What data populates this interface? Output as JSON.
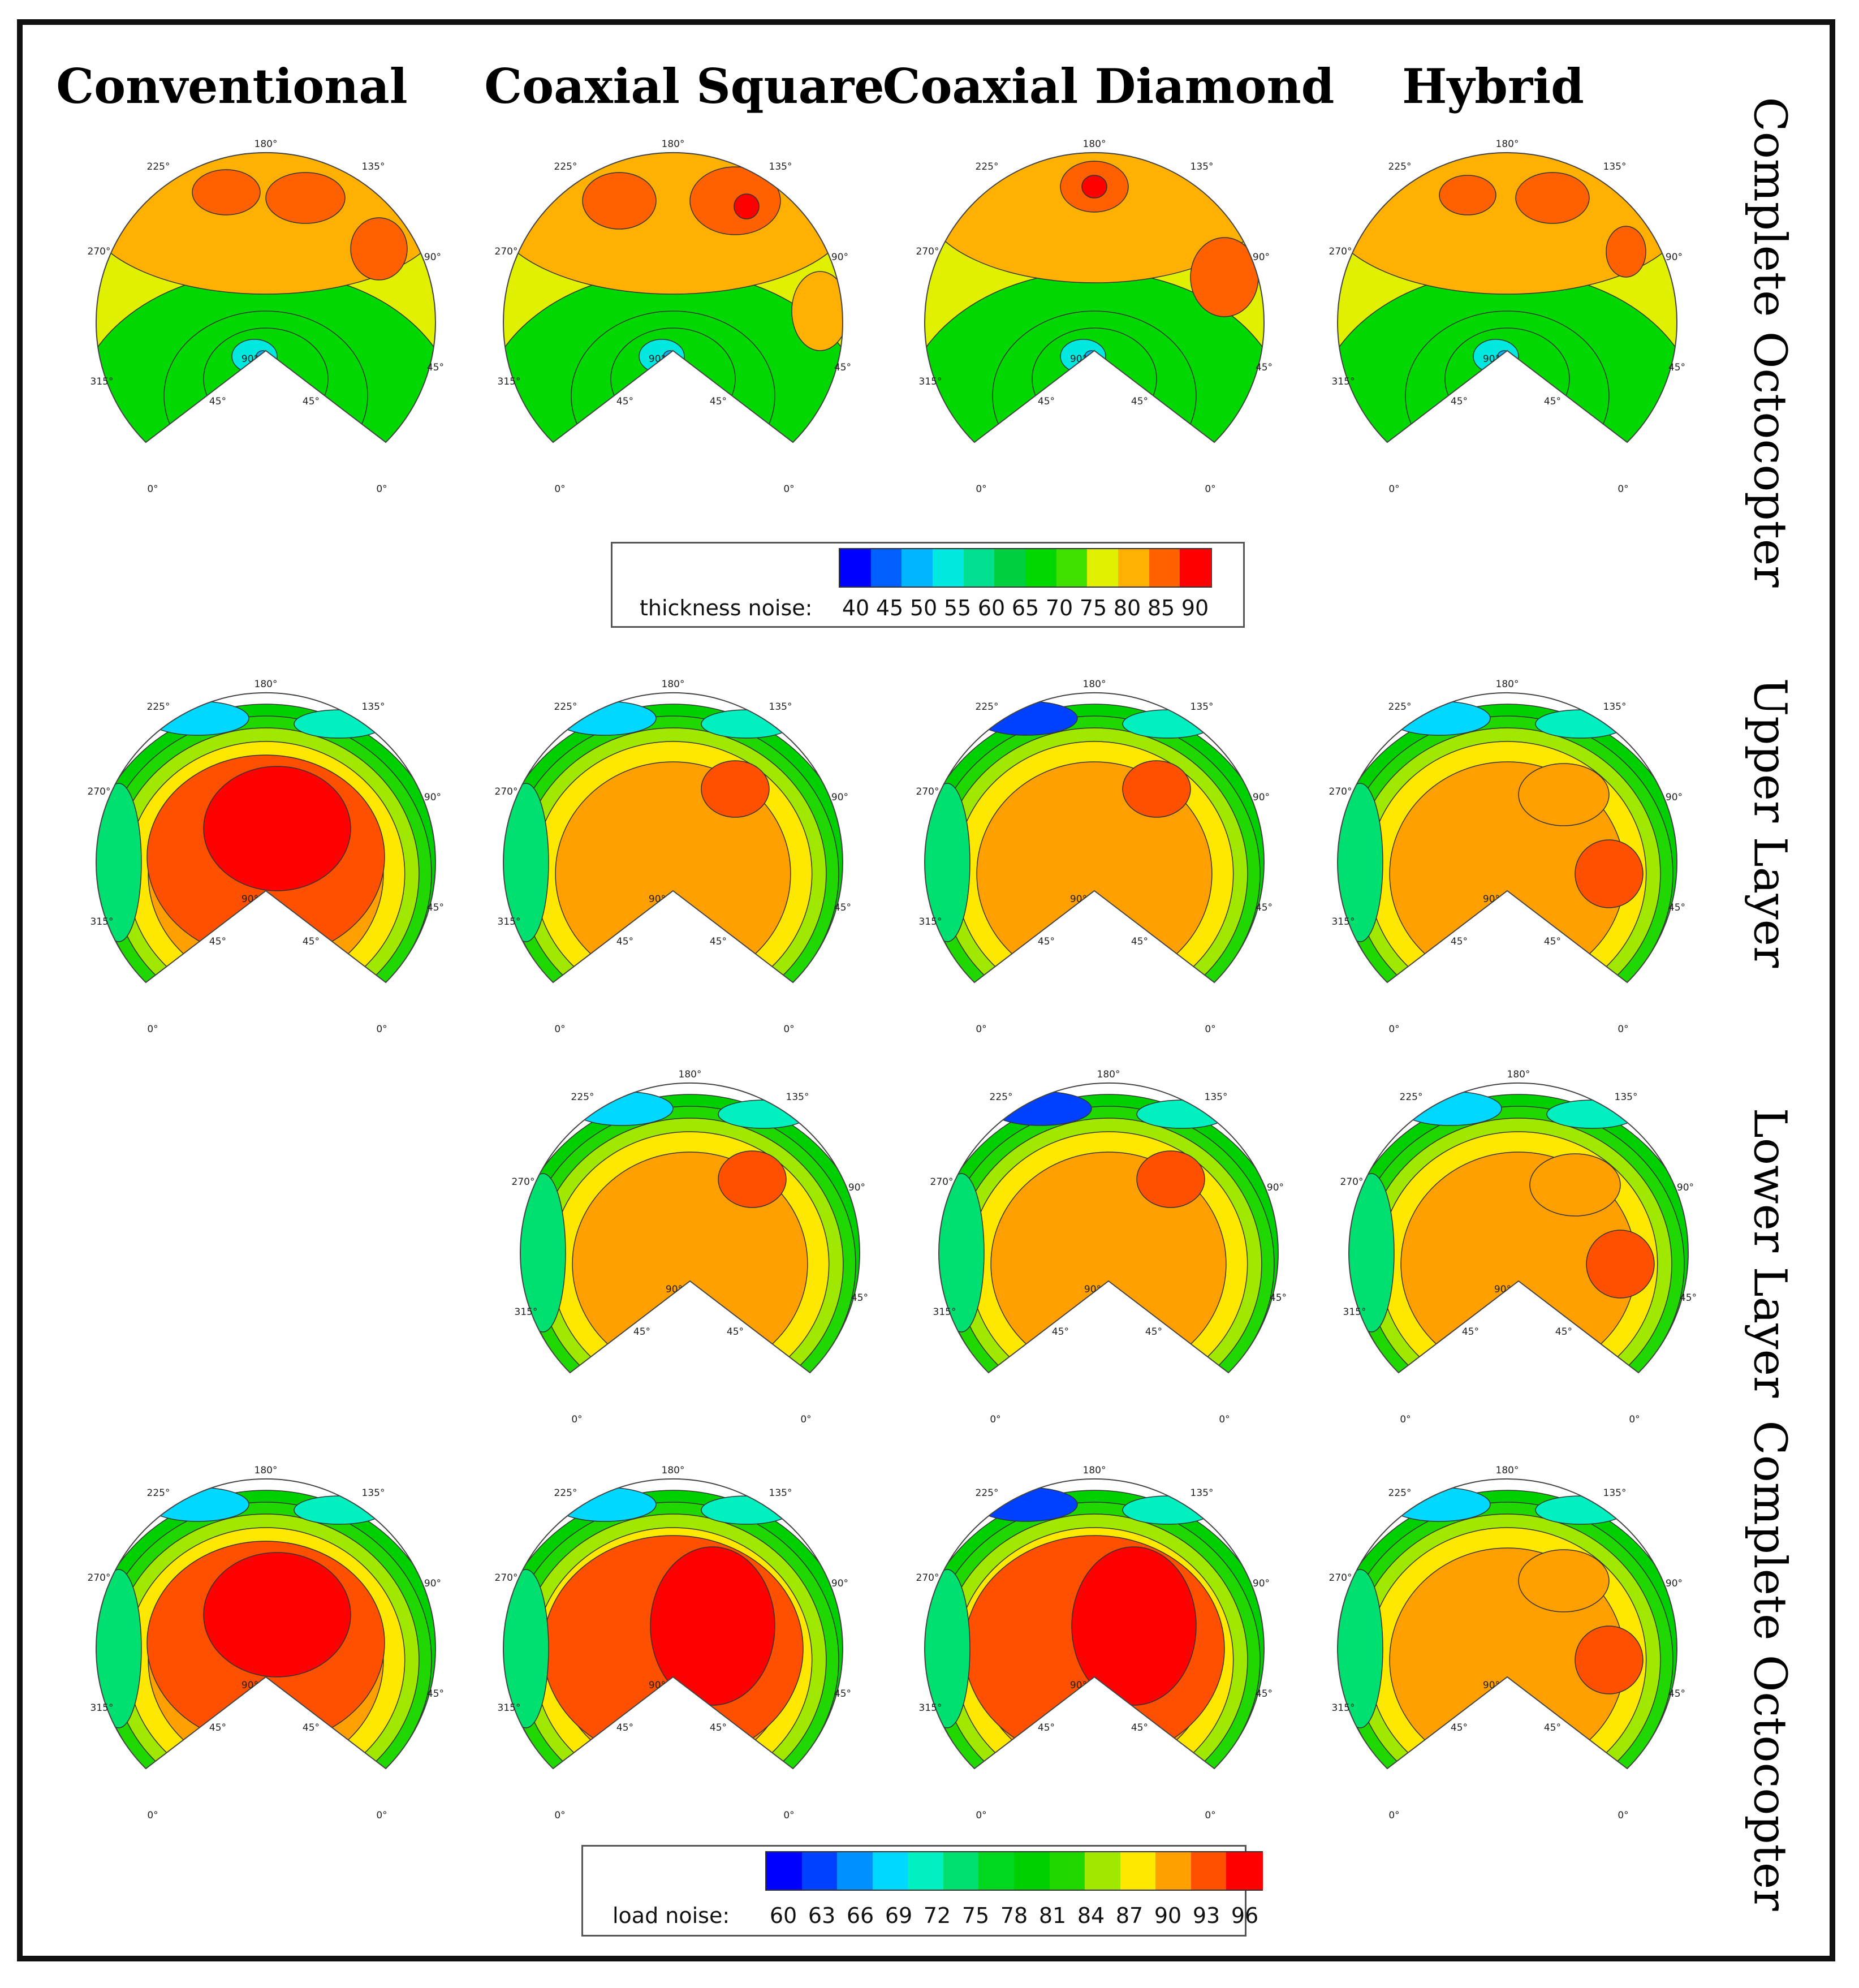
{
  "columns": [
    "Conventional",
    "Coaxial Square",
    "Coaxial Diamond",
    "Hybrid"
  ],
  "rows": [
    "Complete Octocopter",
    "Upper Layer",
    "Lower Layer",
    "Complete Octocopter"
  ],
  "angle_labels": {
    "top": "180°",
    "upper_left": "225°",
    "upper_right": "135°",
    "left": "270°",
    "right": "90°",
    "lower_left": "315°",
    "lower_right": "45°",
    "notch_center": "90°",
    "notch_left": "45°",
    "notch_right": "45°",
    "bottom_left": "0°",
    "bottom_right": "0°"
  },
  "legend_thickness": {
    "label": "thickness noise:",
    "ticks": [
      "40",
      "45",
      "50",
      "55",
      "60",
      "65",
      "70",
      "75",
      "80",
      "85",
      "90"
    ],
    "colors": [
      "#0000ff",
      "#0060ff",
      "#00b4ff",
      "#00e8e0",
      "#00e090",
      "#00d040",
      "#00d800",
      "#40e000",
      "#e0f000",
      "#ffb000",
      "#ff6000",
      "#ff0000"
    ]
  },
  "legend_load": {
    "label": "load noise:",
    "ticks": [
      "60",
      "63",
      "66",
      "69",
      "72",
      "75",
      "78",
      "81",
      "84",
      "87",
      "90",
      "93",
      "96"
    ],
    "colors": [
      "#0000ff",
      "#0040ff",
      "#0090ff",
      "#00d8ff",
      "#00f0c0",
      "#00e070",
      "#00d820",
      "#00d000",
      "#20d800",
      "#a0e800",
      "#ffe800",
      "#ffa000",
      "#ff5000",
      "#ff0000"
    ]
  },
  "colors": {
    "low": "#0000ff",
    "mid": "#00d800",
    "high": "#ff0000",
    "background": "#ffffff",
    "frame": "#111111"
  }
}
